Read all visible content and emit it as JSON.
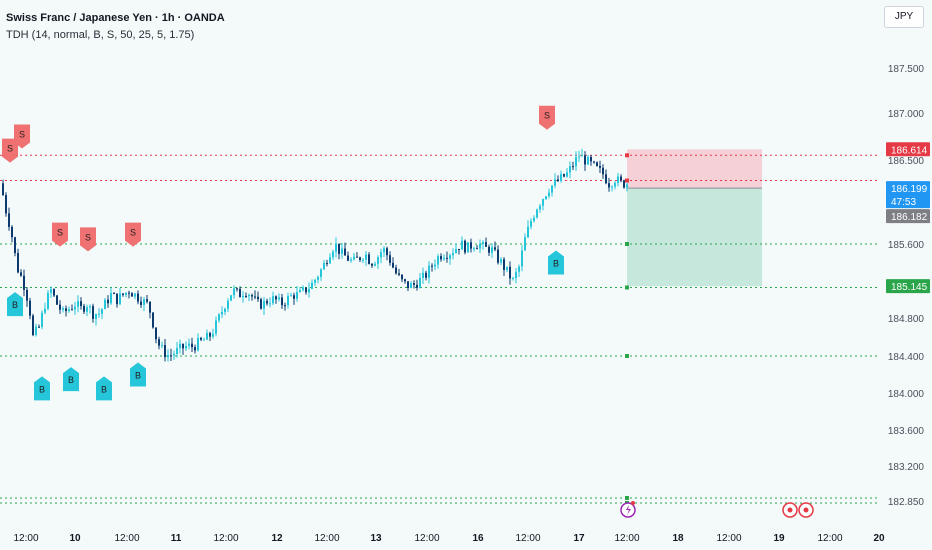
{
  "header": {
    "title": "Swiss Franc / Japanese Yen · 1h · OANDA",
    "indicator": "TDH (14, normal, B, S, 50, 25, 5, 1.75)",
    "currency_button": "JPY"
  },
  "colors": {
    "background": "#f3faf9",
    "bull": "#26c6da",
    "bear": "#0d3a6e",
    "sell_signal": "#f07171",
    "buy_signal": "#26c6da",
    "stop_zone": "#f6b6c0",
    "target_zone": "#b2dfd0",
    "red_level": "#e53945",
    "green_level": "#2aa54a",
    "current_price": "#2196f3"
  },
  "chart_data": {
    "type": "candlestick",
    "symbol": "CHFJPY",
    "timeframe": "1h",
    "y_ticks": [
      {
        "value": 187.5,
        "label": "187.500"
      },
      {
        "value": 187.0,
        "label": "187.000"
      },
      {
        "value": 186.5,
        "label": "186.500"
      },
      {
        "value": 185.6,
        "label": "185.600"
      },
      {
        "value": 184.8,
        "label": "184.800"
      },
      {
        "value": 184.4,
        "label": "184.400"
      },
      {
        "value": 184.0,
        "label": "184.000"
      },
      {
        "value": 183.6,
        "label": "183.600"
      },
      {
        "value": 183.2,
        "label": "183.200"
      },
      {
        "value": 182.85,
        "label": "182.850"
      }
    ],
    "x_ticks": [
      {
        "label": "12:00",
        "bold": false
      },
      {
        "label": "10",
        "bold": true
      },
      {
        "label": "12:00",
        "bold": false
      },
      {
        "label": "11",
        "bold": true
      },
      {
        "label": "12:00",
        "bold": false
      },
      {
        "label": "12",
        "bold": true
      },
      {
        "label": "12:00",
        "bold": false
      },
      {
        "label": "13",
        "bold": true
      },
      {
        "label": "12:00",
        "bold": false
      },
      {
        "label": "16",
        "bold": true
      },
      {
        "label": "12:00",
        "bold": false
      },
      {
        "label": "17",
        "bold": true
      },
      {
        "label": "12:00",
        "bold": false
      },
      {
        "label": "18",
        "bold": true
      },
      {
        "label": "12:00",
        "bold": false
      },
      {
        "label": "19",
        "bold": true
      },
      {
        "label": "12:00",
        "bold": false
      },
      {
        "label": "20",
        "bold": true
      }
    ],
    "candle_path": [
      [
        0,
        186.25
      ],
      [
        4,
        186.0
      ],
      [
        10,
        185.75
      ],
      [
        16,
        185.35
      ],
      [
        22,
        185.2
      ],
      [
        28,
        184.95
      ],
      [
        32,
        184.6
      ],
      [
        38,
        184.7
      ],
      [
        44,
        184.95
      ],
      [
        50,
        185.1
      ],
      [
        56,
        184.95
      ],
      [
        62,
        184.85
      ],
      [
        68,
        184.9
      ],
      [
        74,
        184.95
      ],
      [
        80,
        184.9
      ],
      [
        86,
        184.95
      ],
      [
        92,
        184.85
      ],
      [
        98,
        184.85
      ],
      [
        104,
        184.95
      ],
      [
        110,
        185.05
      ],
      [
        116,
        185.0
      ],
      [
        122,
        185.05
      ],
      [
        128,
        185.1
      ],
      [
        134,
        185.05
      ],
      [
        140,
        185.0
      ],
      [
        146,
        184.95
      ],
      [
        150,
        184.85
      ],
      [
        156,
        184.55
      ],
      [
        162,
        184.45
      ],
      [
        168,
        184.4
      ],
      [
        176,
        184.45
      ],
      [
        184,
        184.5
      ],
      [
        192,
        184.5
      ],
      [
        200,
        184.55
      ],
      [
        208,
        184.6
      ],
      [
        214,
        184.7
      ],
      [
        220,
        184.85
      ],
      [
        226,
        185.0
      ],
      [
        232,
        185.1
      ],
      [
        238,
        185.05
      ],
      [
        244,
        185.1
      ],
      [
        250,
        185.05
      ],
      [
        256,
        184.95
      ],
      [
        262,
        184.95
      ],
      [
        268,
        185.0
      ],
      [
        274,
        185.0
      ],
      [
        280,
        184.95
      ],
      [
        286,
        185.0
      ],
      [
        292,
        185.05
      ],
      [
        298,
        185.05
      ],
      [
        304,
        185.1
      ],
      [
        310,
        185.15
      ],
      [
        316,
        185.25
      ],
      [
        322,
        185.35
      ],
      [
        328,
        185.5
      ],
      [
        334,
        185.6
      ],
      [
        340,
        185.5
      ],
      [
        346,
        185.45
      ],
      [
        352,
        185.4
      ],
      [
        358,
        185.45
      ],
      [
        364,
        185.5
      ],
      [
        370,
        185.4
      ],
      [
        376,
        185.45
      ],
      [
        382,
        185.55
      ],
      [
        388,
        185.45
      ],
      [
        394,
        185.3
      ],
      [
        400,
        185.2
      ],
      [
        406,
        185.15
      ],
      [
        412,
        185.15
      ],
      [
        418,
        185.2
      ],
      [
        424,
        185.25
      ],
      [
        430,
        185.35
      ],
      [
        436,
        185.45
      ],
      [
        442,
        185.5
      ],
      [
        448,
        185.5
      ],
      [
        454,
        185.55
      ],
      [
        460,
        185.6
      ],
      [
        466,
        185.55
      ],
      [
        472,
        185.6
      ],
      [
        478,
        185.6
      ],
      [
        484,
        185.55
      ],
      [
        490,
        185.55
      ],
      [
        496,
        185.45
      ],
      [
        500,
        185.4
      ],
      [
        506,
        185.3
      ],
      [
        512,
        185.2
      ],
      [
        518,
        185.35
      ],
      [
        524,
        185.65
      ],
      [
        530,
        185.85
      ],
      [
        536,
        186.0
      ],
      [
        542,
        186.1
      ],
      [
        548,
        186.2
      ],
      [
        554,
        186.25
      ],
      [
        560,
        186.3
      ],
      [
        566,
        186.35
      ],
      [
        572,
        186.45
      ],
      [
        578,
        186.55
      ],
      [
        584,
        186.5
      ],
      [
        590,
        186.45
      ],
      [
        596,
        186.4
      ],
      [
        602,
        186.35
      ],
      [
        608,
        186.25
      ],
      [
        614,
        186.3
      ],
      [
        620,
        186.25
      ],
      [
        626,
        186.25
      ]
    ],
    "signals": [
      {
        "type": "S",
        "x": 10,
        "price": 186.6
      },
      {
        "type": "S",
        "x": 22,
        "price": 186.75
      },
      {
        "type": "B",
        "x": 15,
        "price": 184.95
      },
      {
        "type": "S",
        "x": 60,
        "price": 185.7
      },
      {
        "type": "S",
        "x": 88,
        "price": 185.65
      },
      {
        "type": "S",
        "x": 133,
        "price": 185.7
      },
      {
        "type": "B",
        "x": 42,
        "price": 184.05
      },
      {
        "type": "B",
        "x": 71,
        "price": 184.15
      },
      {
        "type": "B",
        "x": 104,
        "price": 184.05
      },
      {
        "type": "B",
        "x": 138,
        "price": 184.2
      },
      {
        "type": "S",
        "x": 547,
        "price": 186.95
      },
      {
        "type": "B",
        "x": 556,
        "price": 185.4
      }
    ],
    "levels": [
      {
        "price": 186.55,
        "color": "red"
      },
      {
        "price": 186.28,
        "color": "red"
      },
      {
        "price": 185.6,
        "color": "green"
      },
      {
        "price": 185.13,
        "color": "green"
      },
      {
        "price": 184.4,
        "color": "green"
      },
      {
        "price": 182.88,
        "color": "green"
      },
      {
        "price": 182.83,
        "color": "green"
      }
    ],
    "position": {
      "entry": 186.199,
      "stop": 186.614,
      "target": 185.145
    },
    "price_tags": [
      {
        "label": "186.614",
        "price": 186.614,
        "color": "#e53945"
      },
      {
        "label": "186.199",
        "price": 186.199,
        "color": "#2196f3"
      },
      {
        "label": "47:53",
        "price": 186.14,
        "color": "#2196f3"
      },
      {
        "label": "186.182",
        "price": 186.182,
        "color": "#7d7f85"
      },
      {
        "label": "185.145",
        "price": 185.145,
        "color": "#2aa54a"
      }
    ],
    "events": [
      "lightning",
      "target",
      "target"
    ]
  }
}
